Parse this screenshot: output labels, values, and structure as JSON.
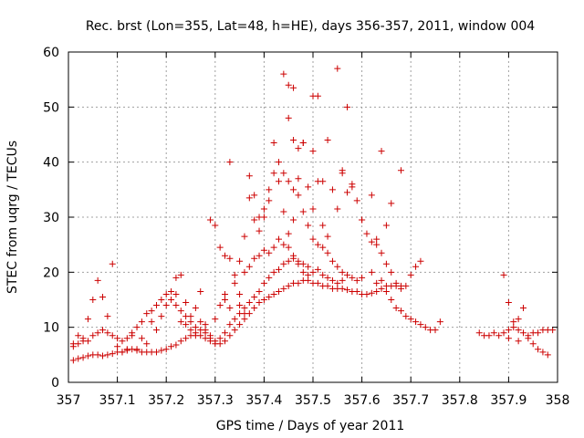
{
  "chart_data": {
    "type": "scatter",
    "title": "Rec. brst (Lon=355, Lat=48, h=HE), days 356-357, 2011, window 004",
    "xlabel": "GPS time / Days of year 2011",
    "ylabel": "STEC from uqrg / TECUs",
    "xlim": [
      357,
      358
    ],
    "ylim": [
      0,
      60
    ],
    "x_ticks": [
      "357",
      "357.1",
      "357.2",
      "357.3",
      "357.4",
      "357.5",
      "357.6",
      "357.7",
      "357.8",
      "357.9",
      "358"
    ],
    "y_ticks": [
      "0",
      "10",
      "20",
      "30",
      "40",
      "50",
      "60"
    ],
    "grid": true,
    "marker": "plus",
    "colors": {
      "points": "#cc0000",
      "axes": "#000000",
      "grid": "#a0a0a0"
    },
    "points": [
      [
        357.01,
        4.0
      ],
      [
        357.02,
        4.3
      ],
      [
        357.03,
        4.5
      ],
      [
        357.04,
        4.8
      ],
      [
        357.05,
        5.0
      ],
      [
        357.06,
        5.0
      ],
      [
        357.07,
        4.8
      ],
      [
        357.08,
        5.0
      ],
      [
        357.09,
        5.2
      ],
      [
        357.1,
        5.5
      ],
      [
        357.11,
        5.5
      ],
      [
        357.12,
        5.8
      ],
      [
        357.13,
        6.0
      ],
      [
        357.14,
        5.8
      ],
      [
        357.15,
        5.5
      ],
      [
        357.16,
        5.5
      ],
      [
        357.17,
        5.5
      ],
      [
        357.18,
        5.5
      ],
      [
        357.19,
        5.8
      ],
      [
        357.2,
        6.0
      ],
      [
        357.21,
        6.5
      ],
      [
        357.22,
        6.8
      ],
      [
        357.23,
        7.5
      ],
      [
        357.24,
        8.0
      ],
      [
        357.25,
        8.5
      ],
      [
        357.26,
        9.0
      ],
      [
        357.27,
        8.5
      ],
      [
        357.28,
        8.0
      ],
      [
        357.29,
        7.5
      ],
      [
        357.3,
        7.0
      ],
      [
        357.31,
        7.0
      ],
      [
        357.32,
        7.5
      ],
      [
        357.33,
        8.5
      ],
      [
        357.34,
        9.5
      ],
      [
        357.35,
        10.5
      ],
      [
        357.36,
        11.5
      ],
      [
        357.37,
        12.5
      ],
      [
        357.38,
        13.5
      ],
      [
        357.39,
        14.5
      ],
      [
        357.4,
        15.0
      ],
      [
        357.41,
        15.5
      ],
      [
        357.42,
        16.0
      ],
      [
        357.43,
        16.5
      ],
      [
        357.44,
        17.0
      ],
      [
        357.45,
        17.5
      ],
      [
        357.46,
        18.0
      ],
      [
        357.47,
        18.0
      ],
      [
        357.48,
        18.5
      ],
      [
        357.49,
        18.5
      ],
      [
        357.5,
        18.0
      ],
      [
        357.51,
        18.0
      ],
      [
        357.52,
        17.5
      ],
      [
        357.53,
        17.5
      ],
      [
        357.54,
        17.0
      ],
      [
        357.55,
        17.0
      ],
      [
        357.56,
        17.0
      ],
      [
        357.57,
        16.8
      ],
      [
        357.58,
        16.5
      ],
      [
        357.59,
        16.5
      ],
      [
        357.6,
        16.0
      ],
      [
        357.61,
        16.0
      ],
      [
        357.62,
        16.2
      ],
      [
        357.63,
        16.5
      ],
      [
        357.64,
        17.0
      ],
      [
        357.65,
        17.5
      ],
      [
        357.66,
        17.5
      ],
      [
        357.67,
        17.5
      ],
      [
        357.68,
        17.0
      ],
      [
        357.69,
        17.5
      ],
      [
        357.01,
        6.5
      ],
      [
        357.02,
        7.0
      ],
      [
        357.03,
        8.0
      ],
      [
        357.04,
        7.5
      ],
      [
        357.05,
        8.5
      ],
      [
        357.06,
        9.0
      ],
      [
        357.07,
        9.5
      ],
      [
        357.08,
        9.0
      ],
      [
        357.09,
        8.5
      ],
      [
        357.1,
        8.0
      ],
      [
        357.11,
        7.5
      ],
      [
        357.12,
        8.0
      ],
      [
        357.13,
        9.0
      ],
      [
        357.14,
        10.0
      ],
      [
        357.15,
        11.0
      ],
      [
        357.16,
        12.5
      ],
      [
        357.17,
        13.0
      ],
      [
        357.18,
        14.0
      ],
      [
        357.19,
        15.0
      ],
      [
        357.2,
        16.0
      ],
      [
        357.21,
        15.0
      ],
      [
        357.22,
        14.0
      ],
      [
        357.23,
        13.0
      ],
      [
        357.24,
        12.0
      ],
      [
        357.25,
        11.0
      ],
      [
        357.26,
        10.0
      ],
      [
        357.27,
        9.5
      ],
      [
        357.28,
        9.0
      ],
      [
        357.29,
        8.0
      ],
      [
        357.3,
        7.5
      ],
      [
        357.31,
        8.0
      ],
      [
        357.32,
        9.0
      ],
      [
        357.33,
        10.5
      ],
      [
        357.34,
        11.5
      ],
      [
        357.35,
        12.5
      ],
      [
        357.36,
        13.5
      ],
      [
        357.37,
        14.5
      ],
      [
        357.38,
        15.5
      ],
      [
        357.39,
        16.5
      ],
      [
        357.4,
        18.0
      ],
      [
        357.41,
        19.0
      ],
      [
        357.42,
        20.0
      ],
      [
        357.43,
        20.5
      ],
      [
        357.44,
        21.5
      ],
      [
        357.45,
        22.0
      ],
      [
        357.46,
        22.5
      ],
      [
        357.47,
        22.0
      ],
      [
        357.48,
        21.5
      ],
      [
        357.49,
        21.0
      ],
      [
        357.5,
        20.0
      ],
      [
        357.51,
        20.5
      ],
      [
        357.52,
        19.5
      ],
      [
        357.53,
        19.0
      ],
      [
        357.54,
        18.5
      ],
      [
        357.55,
        18.0
      ],
      [
        357.56,
        18.5
      ],
      [
        357.01,
        7.0
      ],
      [
        357.02,
        8.5
      ],
      [
        357.03,
        7.5
      ],
      [
        357.04,
        11.5
      ],
      [
        357.05,
        15.0
      ],
      [
        357.06,
        18.5
      ],
      [
        357.07,
        15.5
      ],
      [
        357.08,
        12.0
      ],
      [
        357.09,
        21.5
      ],
      [
        357.1,
        6.5
      ],
      [
        357.11,
        5.5
      ],
      [
        357.12,
        6.0
      ],
      [
        357.13,
        8.5
      ],
      [
        357.14,
        6.0
      ],
      [
        357.15,
        8.0
      ],
      [
        357.16,
        7.0
      ],
      [
        357.17,
        11.0
      ],
      [
        357.18,
        9.5
      ],
      [
        357.19,
        12.0
      ],
      [
        357.2,
        14.0
      ],
      [
        357.21,
        16.5
      ],
      [
        357.22,
        19.0
      ],
      [
        357.23,
        19.5
      ],
      [
        357.24,
        14.5
      ],
      [
        357.25,
        12.0
      ],
      [
        357.26,
        13.5
      ],
      [
        357.27,
        16.5
      ],
      [
        357.28,
        10.5
      ],
      [
        357.29,
        29.5
      ],
      [
        357.3,
        28.5
      ],
      [
        357.31,
        24.5
      ],
      [
        357.32,
        23.0
      ],
      [
        357.33,
        22.5
      ],
      [
        357.34,
        19.5
      ],
      [
        357.35,
        16.0
      ],
      [
        357.36,
        20.0
      ],
      [
        357.37,
        21.0
      ],
      [
        357.38,
        22.5
      ],
      [
        357.39,
        23.0
      ],
      [
        357.4,
        24.0
      ],
      [
        357.41,
        23.5
      ],
      [
        357.42,
        24.5
      ],
      [
        357.43,
        26.0
      ],
      [
        357.44,
        25.0
      ],
      [
        357.45,
        24.5
      ],
      [
        357.46,
        23.0
      ],
      [
        357.47,
        21.5
      ],
      [
        357.48,
        20.0
      ],
      [
        357.49,
        19.5
      ],
      [
        357.22,
        16.0
      ],
      [
        357.23,
        11.0
      ],
      [
        357.24,
        10.5
      ],
      [
        357.25,
        9.5
      ],
      [
        357.26,
        8.5
      ],
      [
        357.27,
        11.0
      ],
      [
        357.28,
        9.5
      ],
      [
        357.29,
        8.5
      ],
      [
        357.3,
        11.5
      ],
      [
        357.31,
        14.0
      ],
      [
        357.32,
        15.0
      ],
      [
        357.33,
        13.5
      ],
      [
        357.34,
        18.0
      ],
      [
        357.35,
        22.0
      ],
      [
        357.36,
        26.5
      ],
      [
        357.37,
        33.5
      ],
      [
        357.38,
        29.5
      ],
      [
        357.39,
        30.0
      ],
      [
        357.4,
        31.5
      ],
      [
        357.41,
        35.0
      ],
      [
        357.42,
        38.0
      ],
      [
        357.43,
        40.0
      ],
      [
        357.44,
        38.0
      ],
      [
        357.45,
        36.5
      ],
      [
        357.46,
        35.0
      ],
      [
        357.47,
        34.0
      ],
      [
        357.48,
        31.0
      ],
      [
        357.49,
        28.5
      ],
      [
        357.5,
        26.0
      ],
      [
        357.51,
        25.0
      ],
      [
        357.52,
        24.5
      ],
      [
        357.53,
        23.5
      ],
      [
        357.54,
        22.0
      ],
      [
        357.55,
        21.0
      ],
      [
        357.56,
        20.0
      ],
      [
        357.57,
        19.5
      ],
      [
        357.58,
        19.0
      ],
      [
        357.59,
        18.5
      ],
      [
        357.6,
        19.0
      ],
      [
        357.32,
        16.0
      ],
      [
        357.33,
        40.0
      ],
      [
        357.35,
        14.0
      ],
      [
        357.36,
        12.5
      ],
      [
        357.37,
        37.5
      ],
      [
        357.38,
        34.0
      ],
      [
        357.39,
        27.5
      ],
      [
        357.4,
        30.0
      ],
      [
        357.41,
        33.0
      ],
      [
        357.42,
        43.5
      ],
      [
        357.43,
        36.5
      ],
      [
        357.44,
        31.0
      ],
      [
        357.45,
        27.0
      ],
      [
        357.46,
        29.5
      ],
      [
        357.47,
        37.0
      ],
      [
        357.48,
        43.5
      ],
      [
        357.49,
        35.5
      ],
      [
        357.5,
        31.5
      ],
      [
        357.51,
        36.5
      ],
      [
        357.52,
        28.5
      ],
      [
        357.53,
        26.5
      ],
      [
        357.54,
        35.0
      ],
      [
        357.55,
        31.5
      ],
      [
        357.56,
        38.0
      ],
      [
        357.57,
        34.5
      ],
      [
        357.58,
        36.0
      ],
      [
        357.59,
        33.0
      ],
      [
        357.6,
        29.5
      ],
      [
        357.61,
        27.0
      ],
      [
        357.62,
        25.5
      ],
      [
        357.63,
        25.0
      ],
      [
        357.64,
        23.5
      ],
      [
        357.65,
        21.5
      ],
      [
        357.66,
        20.0
      ],
      [
        357.67,
        18.0
      ],
      [
        357.68,
        17.5
      ],
      [
        357.44,
        56.0
      ],
      [
        357.45,
        54.0
      ],
      [
        357.46,
        53.5
      ],
      [
        357.45,
        48.0
      ],
      [
        357.46,
        44.0
      ],
      [
        357.47,
        42.5
      ],
      [
        357.48,
        43.5
      ],
      [
        357.5,
        52.0
      ],
      [
        357.51,
        52.0
      ],
      [
        357.53,
        44.0
      ],
      [
        357.55,
        57.0
      ],
      [
        357.57,
        50.0
      ],
      [
        357.56,
        38.5
      ],
      [
        357.58,
        35.5
      ],
      [
        357.62,
        34.0
      ],
      [
        357.64,
        42.0
      ],
      [
        357.66,
        32.5
      ],
      [
        357.68,
        38.5
      ],
      [
        357.5,
        42.0
      ],
      [
        357.52,
        36.5
      ],
      [
        357.6,
        29.5
      ],
      [
        357.63,
        26.0
      ],
      [
        357.65,
        28.5
      ],
      [
        357.62,
        20.0
      ],
      [
        357.63,
        18.0
      ],
      [
        357.64,
        18.5
      ],
      [
        357.65,
        16.5
      ],
      [
        357.66,
        15.0
      ],
      [
        357.67,
        13.5
      ],
      [
        357.68,
        13.0
      ],
      [
        357.69,
        12.0
      ],
      [
        357.7,
        11.5
      ],
      [
        357.71,
        11.0
      ],
      [
        357.72,
        10.5
      ],
      [
        357.73,
        10.0
      ],
      [
        357.74,
        9.5
      ],
      [
        357.75,
        9.5
      ],
      [
        357.7,
        19.5
      ],
      [
        357.71,
        21.0
      ],
      [
        357.72,
        22.0
      ],
      [
        357.76,
        11.0
      ],
      [
        357.84,
        9.0
      ],
      [
        357.85,
        8.5
      ],
      [
        357.86,
        8.5
      ],
      [
        357.87,
        9.0
      ],
      [
        357.88,
        8.5
      ],
      [
        357.89,
        9.0
      ],
      [
        357.9,
        9.5
      ],
      [
        357.91,
        10.0
      ],
      [
        357.92,
        9.5
      ],
      [
        357.93,
        9.0
      ],
      [
        357.94,
        8.5
      ],
      [
        357.95,
        9.0
      ],
      [
        357.96,
        9.0
      ],
      [
        357.97,
        9.5
      ],
      [
        357.98,
        9.5
      ],
      [
        357.99,
        9.5
      ],
      [
        357.89,
        19.5
      ],
      [
        357.9,
        14.5
      ],
      [
        357.91,
        11.0
      ],
      [
        357.92,
        11.5
      ],
      [
        357.93,
        13.5
      ],
      [
        357.94,
        8.0
      ],
      [
        357.95,
        7.0
      ],
      [
        357.96,
        6.0
      ],
      [
        357.97,
        5.5
      ],
      [
        357.98,
        5.0
      ],
      [
        357.9,
        8.0
      ],
      [
        357.92,
        7.5
      ]
    ]
  }
}
